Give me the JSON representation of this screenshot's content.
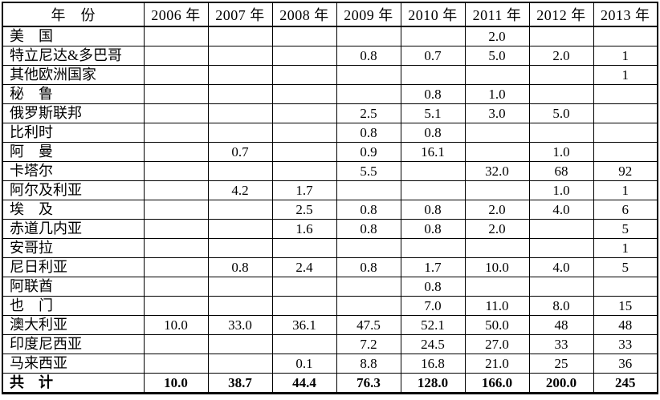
{
  "table": {
    "header": [
      "年　份",
      "2006 年",
      "2007 年",
      "2008 年",
      "2009 年",
      "2010 年",
      "2011 年",
      "2012 年",
      "2013 年"
    ],
    "rows": [
      {
        "label": "美　国",
        "values": [
          "",
          "",
          "",
          "",
          "",
          "2.0",
          "",
          ""
        ]
      },
      {
        "label": "特立尼达&多巴哥",
        "values": [
          "",
          "",
          "",
          "0.8",
          "0.7",
          "5.0",
          "2.0",
          "1"
        ]
      },
      {
        "label": "其他欧洲国家",
        "values": [
          "",
          "",
          "",
          "",
          "",
          "",
          "",
          "1"
        ]
      },
      {
        "label": "秘　鲁",
        "values": [
          "",
          "",
          "",
          "",
          "0.8",
          "1.0",
          "",
          ""
        ]
      },
      {
        "label": "俄罗斯联邦",
        "values": [
          "",
          "",
          "",
          "2.5",
          "5.1",
          "3.0",
          "5.0",
          ""
        ]
      },
      {
        "label": "比利时",
        "values": [
          "",
          "",
          "",
          "0.8",
          "0.8",
          "",
          "",
          ""
        ]
      },
      {
        "label": "阿　曼",
        "values": [
          "",
          "0.7",
          "",
          "0.9",
          "16.1",
          "",
          "1.0",
          ""
        ]
      },
      {
        "label": "卡塔尔",
        "values": [
          "",
          "",
          "",
          "5.5",
          "",
          "32.0",
          "68",
          "92"
        ]
      },
      {
        "label": "阿尔及利亚",
        "values": [
          "",
          "4.2",
          "1.7",
          "",
          "",
          "",
          "1.0",
          "1"
        ]
      },
      {
        "label": "埃　及",
        "values": [
          "",
          "",
          "2.5",
          "0.8",
          "0.8",
          "2.0",
          "4.0",
          "6"
        ]
      },
      {
        "label": "赤道几内亚",
        "values": [
          "",
          "",
          "1.6",
          "0.8",
          "0.8",
          "2.0",
          "",
          "5"
        ]
      },
      {
        "label": "安哥拉",
        "values": [
          "",
          "",
          "",
          "",
          "",
          "",
          "",
          "1"
        ]
      },
      {
        "label": "尼日利亚",
        "values": [
          "",
          "0.8",
          "2.4",
          "0.8",
          "1.7",
          "10.0",
          "4.0",
          "5"
        ]
      },
      {
        "label": "阿联酋",
        "values": [
          "",
          "",
          "",
          "",
          "0.8",
          "",
          "",
          ""
        ]
      },
      {
        "label": "也　门",
        "values": [
          "",
          "",
          "",
          "",
          "7.0",
          "11.0",
          "8.0",
          "15"
        ]
      },
      {
        "label": "澳大利亚",
        "values": [
          "10.0",
          "33.0",
          "36.1",
          "47.5",
          "52.1",
          "50.0",
          "48",
          "48"
        ]
      },
      {
        "label": "印度尼西亚",
        "values": [
          "",
          "",
          "",
          "7.2",
          "24.5",
          "27.0",
          "33",
          "33"
        ]
      },
      {
        "label": "马来西亚",
        "values": [
          "",
          "",
          "0.1",
          "8.8",
          "16.8",
          "21.0",
          "25",
          "36"
        ]
      }
    ],
    "total_row": {
      "label": "共　计",
      "values": [
        "10.0",
        "38.7",
        "44.4",
        "76.3",
        "128.0",
        "166.0",
        "200.0",
        "245"
      ]
    }
  }
}
